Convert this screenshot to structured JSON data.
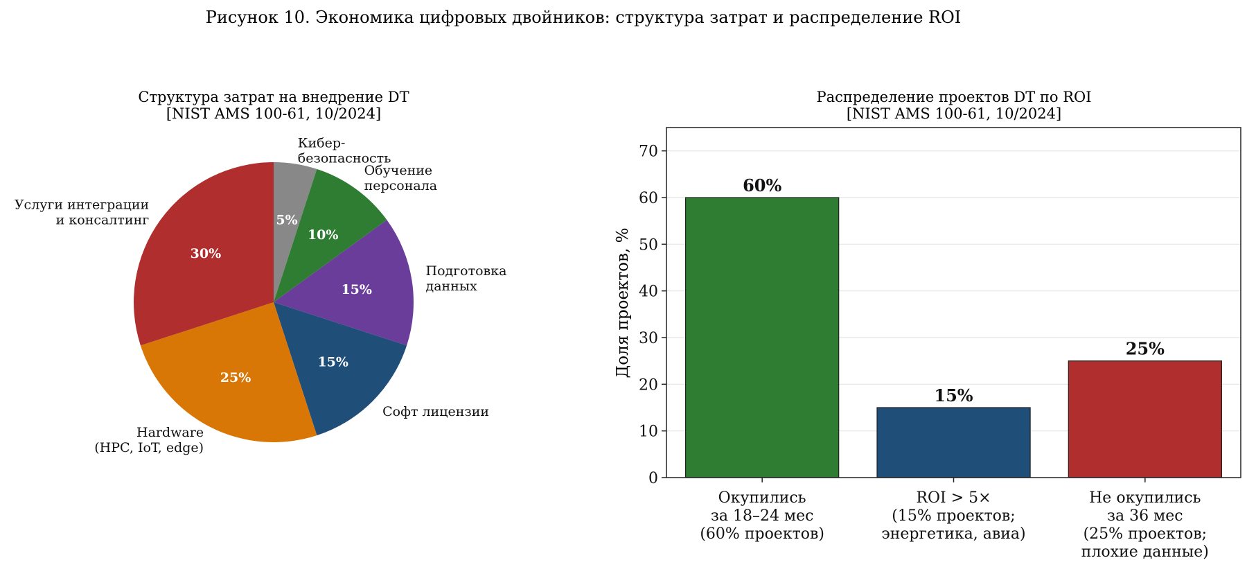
{
  "figure_title": "Рисунок 10. Экономика цифровых двойников: структура затрат и распределение ROI",
  "chart_data": [
    {
      "type": "pie",
      "title": "Структура затрат на внедрение DT",
      "subtitle": "[NIST AMS 100-61, 10/2024]",
      "slices": [
        {
          "label": [
            "Кибер-",
            "безопасность"
          ],
          "value": 5,
          "pct_label": "5%",
          "color": "#888888"
        },
        {
          "label": [
            "Обучение",
            "персонала"
          ],
          "value": 10,
          "pct_label": "10%",
          "color": "#2e7d32"
        },
        {
          "label": [
            "Подготовка",
            "данных"
          ],
          "value": 15,
          "pct_label": "15%",
          "color": "#6a3d9a"
        },
        {
          "label": [
            "Софт лицензии"
          ],
          "value": 15,
          "pct_label": "15%",
          "color": "#1f4e79"
        },
        {
          "label": [
            "Hardware",
            "(HPC, IoT, edge)"
          ],
          "value": 25,
          "pct_label": "25%",
          "color": "#d97706"
        },
        {
          "label": [
            "Услуги интеграции",
            "и консалтинг"
          ],
          "value": 30,
          "pct_label": "30%",
          "color": "#b02e2e"
        }
      ]
    },
    {
      "type": "bar",
      "title": "Распределение проектов DT по ROI",
      "subtitle": "[NIST AMS 100-61, 10/2024]",
      "ylabel": "Доля проектов, %",
      "ylim": [
        0,
        75
      ],
      "yticks": [
        0,
        10,
        20,
        30,
        40,
        50,
        60,
        70
      ],
      "grid": "horizontal",
      "categories": [
        [
          "Окупились",
          "за 18–24 мес",
          "(60% проектов)"
        ],
        [
          "ROI > 5×",
          "(15% проектов;",
          "энергетика, авиа)"
        ],
        [
          "Не окупились",
          "за 36 мес",
          "(25% проектов;",
          "плохие данные)"
        ]
      ],
      "values": [
        60,
        15,
        25
      ],
      "value_labels": [
        "60%",
        "15%",
        "25%"
      ],
      "colors": [
        "#2e7d32",
        "#1f4e79",
        "#b02e2e"
      ]
    }
  ]
}
